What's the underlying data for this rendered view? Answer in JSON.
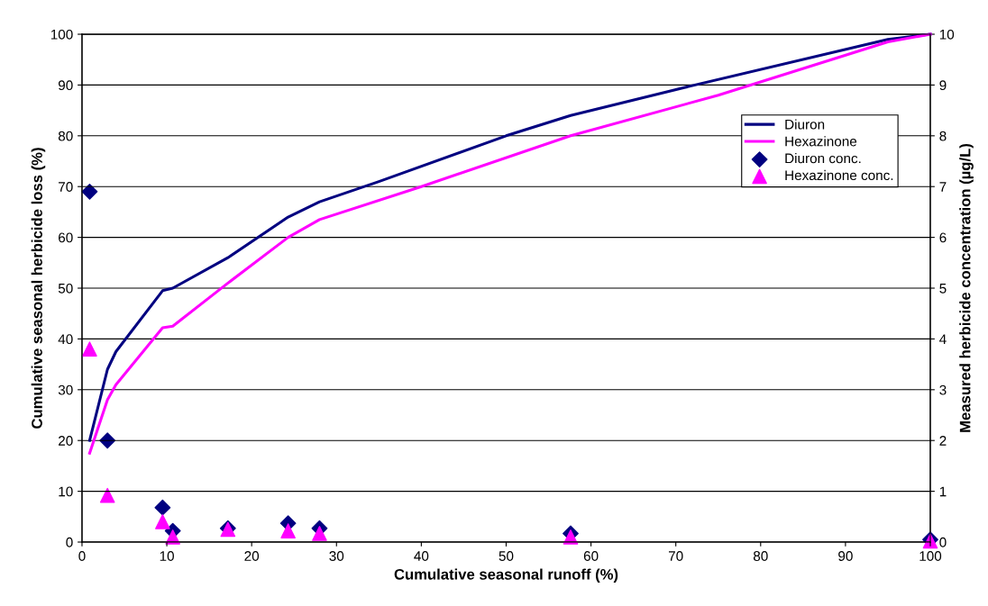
{
  "chart_data": {
    "type": "line",
    "xlabel": "Cumulative seasonal runoff (%)",
    "ylabel": "Cumulative seasonal herbicide loss (%)",
    "y2label": "Measured herbicide concentration (µg/L)",
    "xlim": [
      0,
      100
    ],
    "xticks": [
      0,
      10,
      20,
      30,
      40,
      50,
      60,
      70,
      80,
      90,
      100
    ],
    "ylim": [
      0,
      100
    ],
    "yticks": [
      0,
      10,
      20,
      30,
      40,
      50,
      60,
      70,
      80,
      90,
      100
    ],
    "y2lim": [
      0,
      10
    ],
    "y2ticks": [
      0,
      1,
      2,
      3,
      4,
      5,
      6,
      7,
      8,
      9,
      10
    ],
    "grid": "y",
    "legend": "right",
    "series": [
      {
        "name": "Diuron",
        "color": "#000080",
        "marker": "none",
        "x": [
          0.9,
          3,
          4,
          9.5,
          10.7,
          17.2,
          24.3,
          28,
          35,
          50,
          57.6,
          71,
          95,
          100
        ],
        "values": [
          20,
          34,
          37.5,
          49.5,
          50,
          56,
          64,
          67,
          71,
          80,
          84,
          89.5,
          99,
          100
        ]
      },
      {
        "name": "Hexazinone",
        "color": "#ff00ff",
        "marker": "none",
        "x": [
          0.9,
          3,
          4,
          9.5,
          10.7,
          17.2,
          24.3,
          28,
          40,
          57.6,
          75,
          95,
          100
        ],
        "values": [
          17.5,
          28,
          31,
          42.2,
          42.5,
          51,
          60,
          63.5,
          70,
          80,
          88,
          98.5,
          100
        ]
      },
      {
        "name": "Diuron conc.",
        "type": "scatter",
        "axis": "y2",
        "color": "#000080",
        "marker": "diamond",
        "x": [
          0.9,
          3,
          9.5,
          10.7,
          17.2,
          24.3,
          28,
          57.6,
          100
        ],
        "values": [
          6.9,
          2.0,
          0.68,
          0.22,
          0.27,
          0.37,
          0.27,
          0.17,
          0.05
        ]
      },
      {
        "name": "Hexazinone conc.",
        "type": "scatter",
        "axis": "y2",
        "color": "#ff00ff",
        "marker": "triangle",
        "x": [
          0.9,
          3,
          9.5,
          10.7,
          17.2,
          24.3,
          28,
          57.6,
          100
        ],
        "values": [
          3.8,
          0.92,
          0.4,
          0.1,
          0.25,
          0.22,
          0.17,
          0.1,
          0.02
        ]
      }
    ]
  }
}
